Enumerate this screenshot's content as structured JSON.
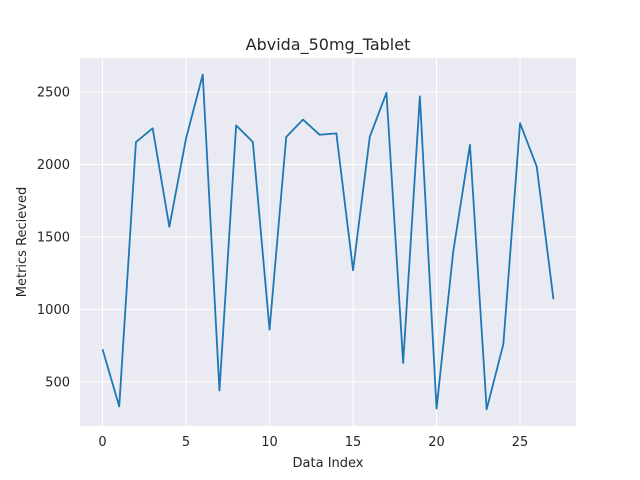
{
  "chart_data": {
    "type": "line",
    "title": "Abvida_50mg_Tablet",
    "xlabel": "Data Index",
    "ylabel": "Metrics Recieved",
    "x": [
      0,
      1,
      2,
      3,
      4,
      5,
      6,
      7,
      8,
      9,
      10,
      11,
      12,
      13,
      14,
      15,
      16,
      17,
      18,
      19,
      20,
      21,
      22,
      23,
      24,
      25,
      26,
      27
    ],
    "series": [
      {
        "values": [
          725,
          330,
          2155,
          2250,
          1570,
          2180,
          2620,
          440,
          2270,
          2155,
          860,
          2190,
          2310,
          2205,
          2215,
          1270,
          2190,
          2495,
          630,
          2470,
          315,
          1400,
          2135,
          310,
          760,
          2285,
          1985,
          1070
        ]
      }
    ],
    "xlim": [
      -1.35,
      28.35
    ],
    "ylim": [
      195,
      2735
    ],
    "xticks": [
      0,
      5,
      10,
      15,
      20,
      25
    ],
    "yticks": [
      500,
      1000,
      1500,
      2000,
      2500
    ],
    "line_color": "#1f77b4",
    "plot_background": "#eaeaf2",
    "grid_color": "#ffffff",
    "grid": true
  }
}
